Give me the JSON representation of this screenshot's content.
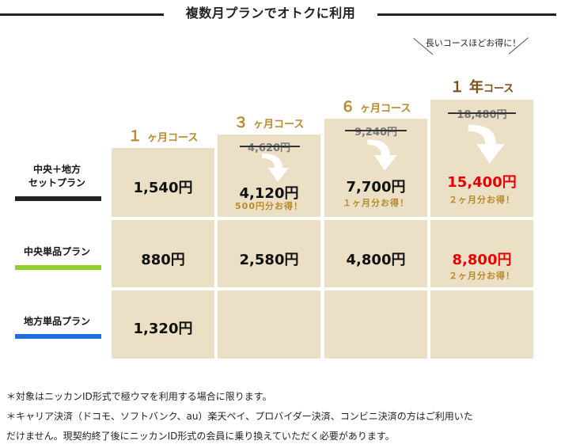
{
  "heading": {
    "title": "複数月プランでオトクに利用"
  },
  "callout": {
    "text": "長いコースほどお得に！"
  },
  "courses": [
    {
      "num": "１",
      "unit": "ヶ月",
      "suffix": "コース"
    },
    {
      "num": "３",
      "unit": "ヶ月",
      "suffix": "コース"
    },
    {
      "num": "６",
      "unit": "ヶ月",
      "suffix": "コース"
    },
    {
      "num": "１",
      "unit": "年",
      "suffix": "コース"
    }
  ],
  "plans": [
    {
      "label_line1": "中央＋地方",
      "label_line2": "セットプラン",
      "bar_color": "#222222"
    },
    {
      "label_line1": "中央単品プラン",
      "label_line2": "",
      "bar_color": "#8fd12a"
    },
    {
      "label_line1": "地方単品プラン",
      "label_line2": "",
      "bar_color": "#1e6fd9"
    }
  ],
  "table": {
    "set": {
      "m1": {
        "price": "1,540円"
      },
      "m3": {
        "old": "4,620円",
        "price": "4,120円",
        "save": "500円分お得！"
      },
      "m6": {
        "old": "9,240円",
        "price": "7,700円",
        "save": "１ヶ月分お得！"
      },
      "y1": {
        "old": "18,480円",
        "price": "15,400円",
        "save": "２ヶ月分お得！"
      }
    },
    "central": {
      "m1": {
        "price": "880円"
      },
      "m3": {
        "price": "2,580円"
      },
      "m6": {
        "price": "4,800円"
      },
      "y1": {
        "price": "8,800円",
        "save": "２ヶ月分お得！"
      }
    },
    "local": {
      "m1": {
        "price": "1,320円"
      }
    }
  },
  "notes": {
    "line1": "＊対象はニッカンID形式で極ウマを利用する場合に限ります。",
    "line2": "＊キャリア決済（ドコモ、ソフトバンク、au）楽天ペイ、プロバイダー決済、コンビニ決済の方はご利用いた",
    "line3": "だけません。現契約終了後にニッカンID形式の会員に乗り換えていただく必要があります。"
  },
  "colors": {
    "cell": "#ebe0c5",
    "gold": "#b88a2c",
    "red": "#e60000",
    "arrow": "#ffffff"
  }
}
